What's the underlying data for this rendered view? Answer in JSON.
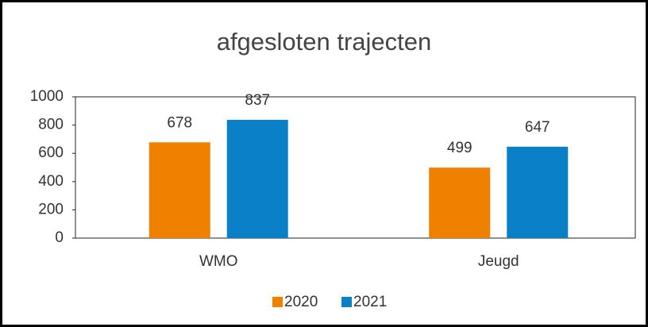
{
  "chart_data": {
    "type": "bar",
    "title": "afgesloten trajecten",
    "categories": [
      "WMO",
      "Jeugd"
    ],
    "series": [
      {
        "name": "2020",
        "color": "#f08000",
        "values": [
          678,
          499
        ]
      },
      {
        "name": "2021",
        "color": "#0a80c8",
        "values": [
          837,
          647
        ]
      }
    ],
    "ylim": [
      0,
      1000
    ],
    "yticks": [
      0,
      200,
      400,
      600,
      800,
      1000
    ],
    "grid": false,
    "legend": "bottom"
  }
}
